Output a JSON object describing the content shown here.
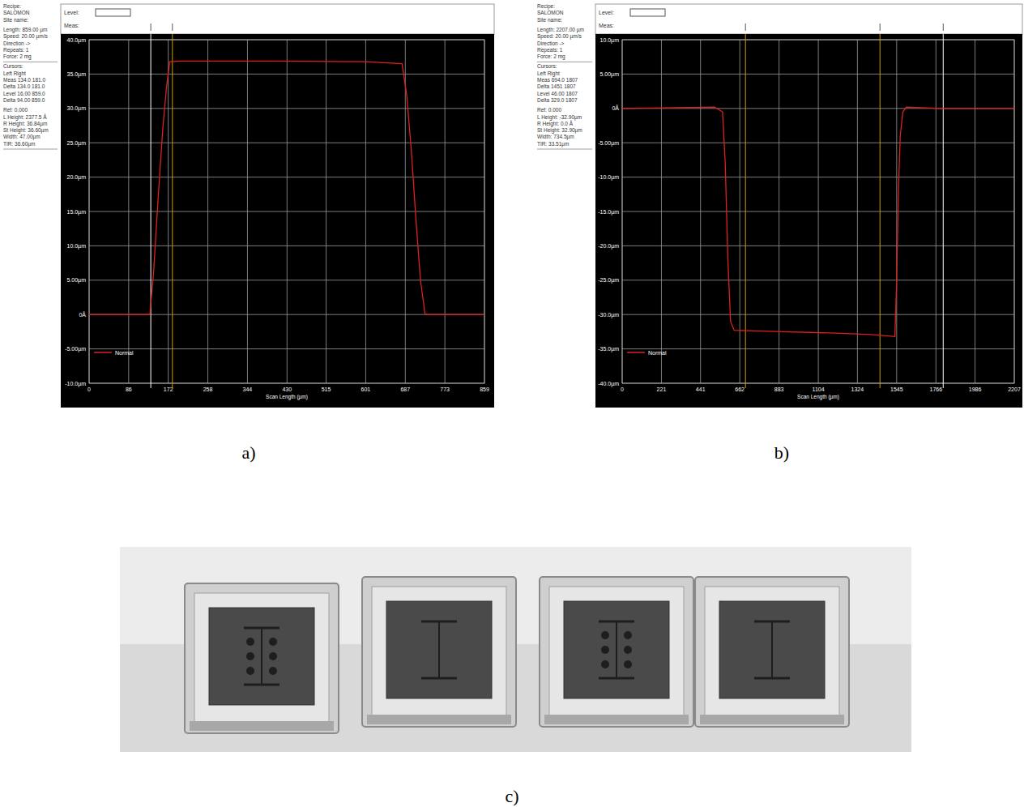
{
  "chart_data": [
    {
      "type": "line",
      "panel": "a)",
      "header": [
        "Level:",
        "Meas:"
      ],
      "info": [
        [
          "Recipe:",
          " SALOMON",
          "Site name:"
        ],
        [
          "Length: 859.00 µm",
          "Speed: 20.00 µm/s",
          "Direction ->",
          "Repeats: 1",
          "Force: 2 mg"
        ],
        [
          "Cursors:",
          "        Left    Right",
          "Meas  134.0  181.0",
          "Delta 134.0  181.0",
          "Level  16.00  859.0",
          "Delta  94.00  859.0"
        ],
        [
          "Ref:      0.000",
          "L Height: 2377.5 Å",
          "R Height: 36.84µm",
          "St Height: 36.60µm",
          "Width:    47.00µm",
          "TIR:       36.60µm"
        ]
      ],
      "x_label": "Scan Length (µm)",
      "x": [
        0,
        132,
        140,
        150,
        160,
        168,
        175,
        200,
        400,
        600,
        680,
        690,
        700,
        710,
        720,
        730,
        859
      ],
      "series": [
        {
          "name": "Normal",
          "color": "#e0201c",
          "values": [
            0,
            0,
            6,
            17,
            27,
            33,
            36.8,
            36.9,
            36.9,
            36.8,
            36.5,
            32,
            24,
            14,
            5,
            0,
            0
          ]
        }
      ],
      "cursors": [
        {
          "x": 134,
          "color": "#ffffff"
        },
        {
          "x": 181,
          "color": "#c8a000"
        }
      ],
      "xlim": [
        0,
        859
      ],
      "xticks": [
        0,
        86,
        172,
        258,
        344,
        430,
        515,
        601,
        687,
        773,
        859
      ],
      "ylim": [
        -10,
        40
      ],
      "yticks": [
        {
          "value": 40,
          "label": "40.0µm"
        },
        {
          "value": 35,
          "label": "35.0µm"
        },
        {
          "value": 30,
          "label": "30.0µm"
        },
        {
          "value": 25,
          "label": "25.0µm"
        },
        {
          "value": 20,
          "label": "20.0µm"
        },
        {
          "value": 15,
          "label": "15.0µm"
        },
        {
          "value": 10,
          "label": "10.0µm"
        },
        {
          "value": 5,
          "label": "5.00µm"
        },
        {
          "value": 0,
          "label": "0Å"
        },
        {
          "value": -5,
          "label": "-5.00µm"
        },
        {
          "value": -10,
          "label": "-10.0µm"
        }
      ],
      "grid": true,
      "legend": "lower left"
    },
    {
      "type": "line",
      "panel": "b)",
      "header": [
        "Level:",
        "Meas:"
      ],
      "info": [
        [
          "Recipe:",
          " SALOMON",
          "Site name:"
        ],
        [
          "Length: 2207.00 µm",
          "Speed: 20.00 µm/s",
          "Direction ->",
          "Repeats: 1",
          "Force: 2 mg"
        ],
        [
          "Cursors:",
          "        Left    Right",
          "Meas  694.0  1807",
          "Delta 1451   1807",
          "Level  46.00  1807",
          "Delta  329.0  1807"
        ],
        [
          "Ref:      0.000",
          "L Height: -32.90µm",
          "R Height: 0.0 Å",
          "St Height: 32.90µm",
          "Width:    734.5µm",
          "TIR:       33.51µm"
        ]
      ],
      "x_label": "Scan Length (µm)",
      "x": [
        0,
        300,
        520,
        565,
        580,
        595,
        610,
        630,
        900,
        1200,
        1400,
        1535,
        1545,
        1555,
        1565,
        1580,
        1600,
        1800,
        2207
      ],
      "series": [
        {
          "name": "Normal",
          "color": "#e0201c",
          "values": [
            0,
            0.1,
            0.2,
            -0.5,
            -8,
            -22,
            -31,
            -32.3,
            -32.5,
            -32.7,
            -32.9,
            -33.2,
            -25,
            -12,
            -4,
            -0.5,
            0.2,
            0,
            0
          ]
        }
      ],
      "cursors": [
        {
          "x": 694,
          "color": "#c8a000"
        },
        {
          "x": 1451,
          "color": "#c8a000"
        },
        {
          "x": 1807,
          "color": "#ffffff"
        }
      ],
      "xlim": [
        0,
        2207
      ],
      "xticks": [
        0,
        221,
        441,
        662,
        883,
        1104,
        1324,
        1545,
        1766,
        1986,
        2207
      ],
      "ylim": [
        -40,
        10
      ],
      "yticks": [
        {
          "value": 10,
          "label": "10.0µm"
        },
        {
          "value": 5,
          "label": "5.00µm"
        },
        {
          "value": 0,
          "label": "0Å"
        },
        {
          "value": -5,
          "label": "-5.00µm"
        },
        {
          "value": -10,
          "label": "-10.0µm"
        },
        {
          "value": -15,
          "label": "-15.0µm"
        },
        {
          "value": -20,
          "label": "-20.0µm"
        },
        {
          "value": -25,
          "label": "-25.0µm"
        },
        {
          "value": -30,
          "label": "-30.0µm"
        },
        {
          "value": -35,
          "label": "-35.0µm"
        },
        {
          "value": -40,
          "label": "-40.0µm"
        }
      ],
      "grid": true,
      "legend": "lower left"
    }
  ],
  "photo": {
    "label": "c)"
  }
}
